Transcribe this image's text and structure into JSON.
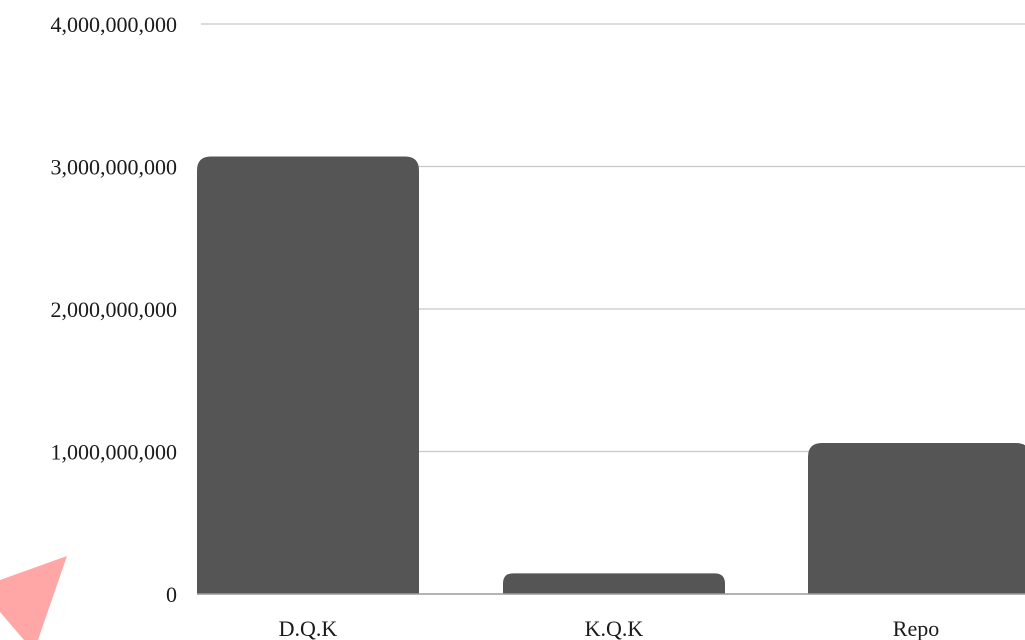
{
  "chart_data": {
    "type": "bar",
    "categories": [
      "D.Q.K",
      "K.Q.K",
      "Repo"
    ],
    "values": [
      3070000000,
      145000000,
      1060000000
    ],
    "ylim": [
      0,
      4000000000
    ],
    "yticks": [
      0,
      1000000000,
      2000000000,
      3000000000,
      4000000000
    ],
    "ytick_labels": [
      "0",
      "1,000,000,000",
      "2,000,000,000",
      "3,000,000,000",
      "4,000,000,000"
    ],
    "grid": true,
    "bar_color": "#555555"
  },
  "decoration": {
    "arrow_color": "#ffa6a6",
    "arrow_icon": "arrow-up-right-icon"
  }
}
